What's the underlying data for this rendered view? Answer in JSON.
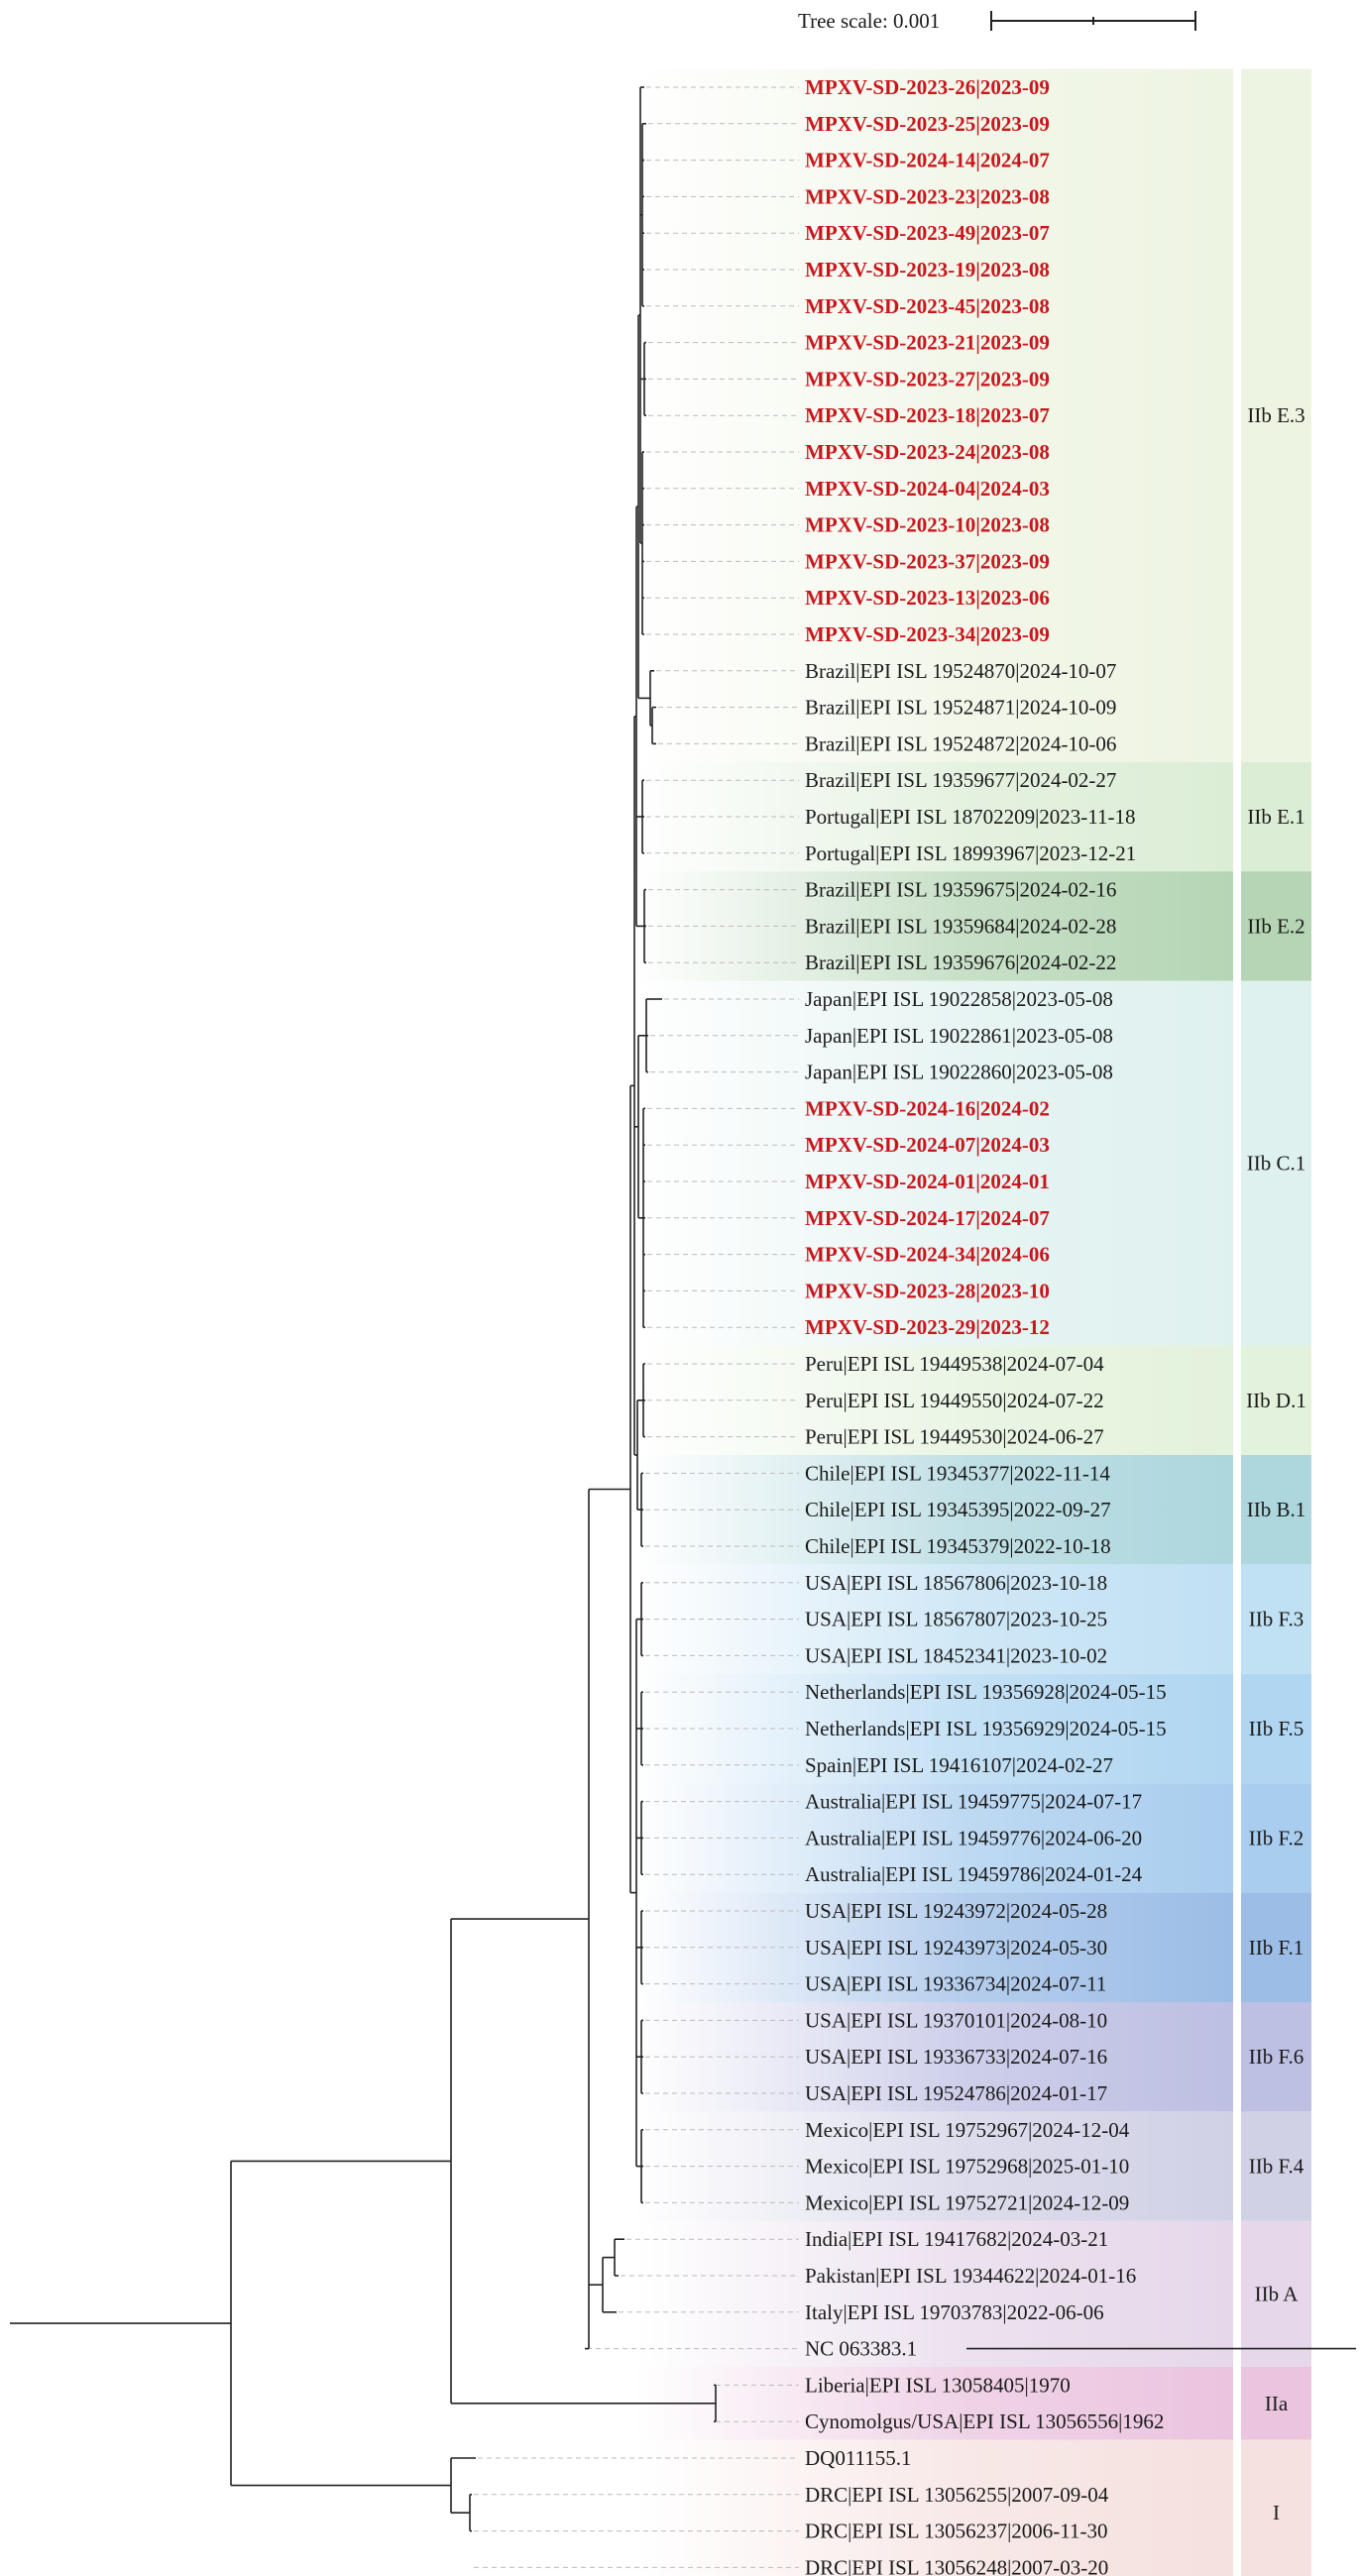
{
  "scale_bar": {
    "label": "Tree scale: 0.001"
  },
  "leaves": [
    {
      "label": "MPXV-SD-2023-26|2023-09",
      "highlight": true
    },
    {
      "label": "MPXV-SD-2023-25|2023-09",
      "highlight": true
    },
    {
      "label": "MPXV-SD-2024-14|2024-07",
      "highlight": true
    },
    {
      "label": "MPXV-SD-2023-23|2023-08",
      "highlight": true
    },
    {
      "label": "MPXV-SD-2023-49|2023-07",
      "highlight": true
    },
    {
      "label": "MPXV-SD-2023-19|2023-08",
      "highlight": true
    },
    {
      "label": "MPXV-SD-2023-45|2023-08",
      "highlight": true
    },
    {
      "label": "MPXV-SD-2023-21|2023-09",
      "highlight": true
    },
    {
      "label": "MPXV-SD-2023-27|2023-09",
      "highlight": true
    },
    {
      "label": "MPXV-SD-2023-18|2023-07",
      "highlight": true
    },
    {
      "label": "MPXV-SD-2023-24|2023-08",
      "highlight": true
    },
    {
      "label": "MPXV-SD-2024-04|2024-03",
      "highlight": true
    },
    {
      "label": "MPXV-SD-2023-10|2023-08",
      "highlight": true
    },
    {
      "label": "MPXV-SD-2023-37|2023-09",
      "highlight": true
    },
    {
      "label": "MPXV-SD-2023-13|2023-06",
      "highlight": true
    },
    {
      "label": "MPXV-SD-2023-34|2023-09",
      "highlight": true
    },
    {
      "label": "Brazil|EPI ISL 19524870|2024-10-07",
      "highlight": false
    },
    {
      "label": "Brazil|EPI ISL 19524871|2024-10-09",
      "highlight": false
    },
    {
      "label": "Brazil|EPI ISL 19524872|2024-10-06",
      "highlight": false
    },
    {
      "label": "Brazil|EPI ISL 19359677|2024-02-27",
      "highlight": false
    },
    {
      "label": "Portugal|EPI ISL 18702209|2023-11-18",
      "highlight": false
    },
    {
      "label": "Portugal|EPI ISL 18993967|2023-12-21",
      "highlight": false
    },
    {
      "label": "Brazil|EPI ISL 19359675|2024-02-16",
      "highlight": false
    },
    {
      "label": "Brazil|EPI ISL 19359684|2024-02-28",
      "highlight": false
    },
    {
      "label": "Brazil|EPI ISL 19359676|2024-02-22",
      "highlight": false
    },
    {
      "label": "Japan|EPI ISL 19022858|2023-05-08",
      "highlight": false
    },
    {
      "label": "Japan|EPI ISL 19022861|2023-05-08",
      "highlight": false
    },
    {
      "label": "Japan|EPI ISL 19022860|2023-05-08",
      "highlight": false
    },
    {
      "label": "MPXV-SD-2024-16|2024-02",
      "highlight": true
    },
    {
      "label": "MPXV-SD-2024-07|2024-03",
      "highlight": true
    },
    {
      "label": "MPXV-SD-2024-01|2024-01",
      "highlight": true
    },
    {
      "label": "MPXV-SD-2024-17|2024-07",
      "highlight": true
    },
    {
      "label": "MPXV-SD-2024-34|2024-06",
      "highlight": true
    },
    {
      "label": "MPXV-SD-2023-28|2023-10",
      "highlight": true
    },
    {
      "label": "MPXV-SD-2023-29|2023-12",
      "highlight": true
    },
    {
      "label": "Peru|EPI ISL 19449538|2024-07-04",
      "highlight": false
    },
    {
      "label": "Peru|EPI ISL 19449550|2024-07-22",
      "highlight": false
    },
    {
      "label": "Peru|EPI ISL 19449530|2024-06-27",
      "highlight": false
    },
    {
      "label": "Chile|EPI ISL 19345377|2022-11-14",
      "highlight": false
    },
    {
      "label": "Chile|EPI ISL 19345395|2022-09-27",
      "highlight": false
    },
    {
      "label": "Chile|EPI ISL 19345379|2022-10-18",
      "highlight": false
    },
    {
      "label": "USA|EPI ISL 18567806|2023-10-18",
      "highlight": false
    },
    {
      "label": "USA|EPI ISL 18567807|2023-10-25",
      "highlight": false
    },
    {
      "label": "USA|EPI ISL 18452341|2023-10-02",
      "highlight": false
    },
    {
      "label": "Netherlands|EPI ISL 19356928|2024-05-15",
      "highlight": false
    },
    {
      "label": "Netherlands|EPI ISL 19356929|2024-05-15",
      "highlight": false
    },
    {
      "label": "Spain|EPI ISL 19416107|2024-02-27",
      "highlight": false
    },
    {
      "label": "Australia|EPI ISL 19459775|2024-07-17",
      "highlight": false
    },
    {
      "label": "Australia|EPI ISL 19459776|2024-06-20",
      "highlight": false
    },
    {
      "label": "Australia|EPI ISL 19459786|2024-01-24",
      "highlight": false
    },
    {
      "label": "USA|EPI ISL 19243972|2024-05-28",
      "highlight": false
    },
    {
      "label": "USA|EPI ISL 19243973|2024-05-30",
      "highlight": false
    },
    {
      "label": "USA|EPI ISL 19336734|2024-07-11",
      "highlight": false
    },
    {
      "label": "USA|EPI ISL 19370101|2024-08-10",
      "highlight": false
    },
    {
      "label": "USA|EPI ISL 19336733|2024-07-16",
      "highlight": false
    },
    {
      "label": "USA|EPI ISL 19524786|2024-01-17",
      "highlight": false
    },
    {
      "label": "Mexico|EPI ISL 19752967|2024-12-04",
      "highlight": false
    },
    {
      "label": "Mexico|EPI ISL 19752968|2025-01-10",
      "highlight": false
    },
    {
      "label": "Mexico|EPI ISL 19752721|2024-12-09",
      "highlight": false
    },
    {
      "label": "India|EPI ISL 19417682|2024-03-21",
      "highlight": false
    },
    {
      "label": "Pakistan|EPI ISL 19344622|2024-01-16",
      "highlight": false
    },
    {
      "label": "Italy|EPI ISL 19703783|2022-06-06",
      "highlight": false
    },
    {
      "label": "NC 063383.1",
      "highlight": false
    },
    {
      "label": "Liberia|EPI ISL 13058405|1970",
      "highlight": false
    },
    {
      "label": "Cynomolgus/USA|EPI ISL 13056556|1962",
      "highlight": false
    },
    {
      "label": "DQ011155.1",
      "highlight": false
    },
    {
      "label": "DRC|EPI ISL 13056255|2007-09-04",
      "highlight": false
    },
    {
      "label": "DRC|EPI ISL 13056237|2006-11-30",
      "highlight": false
    },
    {
      "label": "DRC|EPI ISL 13056248|2007-03-20",
      "highlight": false
    }
  ],
  "clades": [
    {
      "label": "IIb E.3",
      "first": 0,
      "last": 18,
      "color": "#eef4e2"
    },
    {
      "label": "IIb E.1",
      "first": 19,
      "last": 21,
      "color": "#dcedd6"
    },
    {
      "label": "IIb E.2",
      "first": 22,
      "last": 24,
      "color": "#b5d5b5"
    },
    {
      "label": "IIb C.1",
      "first": 25,
      "last": 34,
      "color": "#dff1ef"
    },
    {
      "label": "IIb D.1",
      "first": 35,
      "last": 37,
      "color": "#e3f2dc"
    },
    {
      "label": "IIb B.1",
      "first": 38,
      "last": 40,
      "color": "#add6dd"
    },
    {
      "label": "IIb F.3",
      "first": 41,
      "last": 43,
      "color": "#c0e0f3"
    },
    {
      "label": "IIb F.5",
      "first": 44,
      "last": 46,
      "color": "#b0d6f1"
    },
    {
      "label": "IIb F.2",
      "first": 47,
      "last": 49,
      "color": "#a9cdee"
    },
    {
      "label": "IIb F.1",
      "first": 50,
      "last": 52,
      "color": "#9cbde6"
    },
    {
      "label": "IIb F.6",
      "first": 53,
      "last": 55,
      "color": "#bdbfe3"
    },
    {
      "label": "IIb F.4",
      "first": 56,
      "last": 58,
      "color": "#d1d1e6"
    },
    {
      "label": "IIb A",
      "first": 59,
      "last": 62,
      "color": "#e6d8ea"
    },
    {
      "label": "IIa",
      "first": 63,
      "last": 64,
      "color": "#ebc4df"
    },
    {
      "label": "I",
      "first": 65,
      "last": 68,
      "color": "#f5e1df"
    }
  ],
  "colors": {
    "highlight_text": "#c8161d",
    "normal_text": "#1a1a1a",
    "branch": "#222222",
    "leader": "#bbbbbb"
  }
}
